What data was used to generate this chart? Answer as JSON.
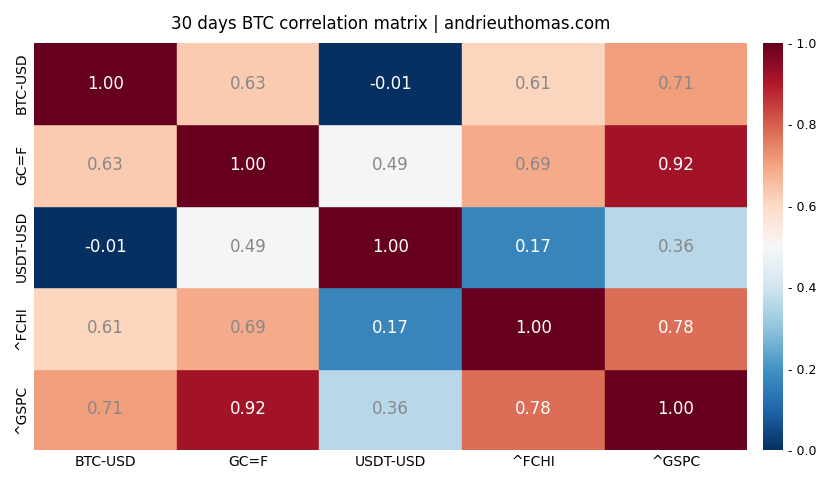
{
  "title": "30 days BTC correlation matrix | andrieuthomas.com",
  "labels": [
    "BTC-USD",
    "GC=F",
    "USDT-USD",
    "^FCHI",
    "^GSPC"
  ],
  "matrix": [
    [
      1.0,
      0.63,
      -0.01,
      0.61,
      0.71
    ],
    [
      0.63,
      1.0,
      0.49,
      0.69,
      0.92
    ],
    [
      -0.01,
      0.49,
      1.0,
      0.17,
      0.36
    ],
    [
      0.61,
      0.69,
      0.17,
      1.0,
      0.78
    ],
    [
      0.71,
      0.92,
      0.36,
      0.78,
      1.0
    ]
  ],
  "y_labels": [
    "BTC-USD",
    "GC=F",
    "USDT-USD",
    "^FCHI",
    "^GSPC"
  ],
  "x_labels": [
    "BTC-USD",
    "GC=F",
    "USDT-USD",
    "^FCHI",
    "^GSPC"
  ],
  "vmin": 0.0,
  "vmax": 1.0,
  "cmap": "RdBu_r",
  "title_fontsize": 12,
  "label_fontsize": 10,
  "annot_fontsize": 12,
  "colorbar_ticks": [
    0.0,
    0.2,
    0.4,
    0.6,
    0.8,
    1.0
  ],
  "colorbar_labels": [
    "- 0.0",
    "- 0.2",
    "- 0.4",
    "- 0.6",
    "- 0.8",
    "- 1.0"
  ],
  "background_color": "#ffffff",
  "white_text_thresh": 0.75,
  "gray_text_thresh": 0.35
}
